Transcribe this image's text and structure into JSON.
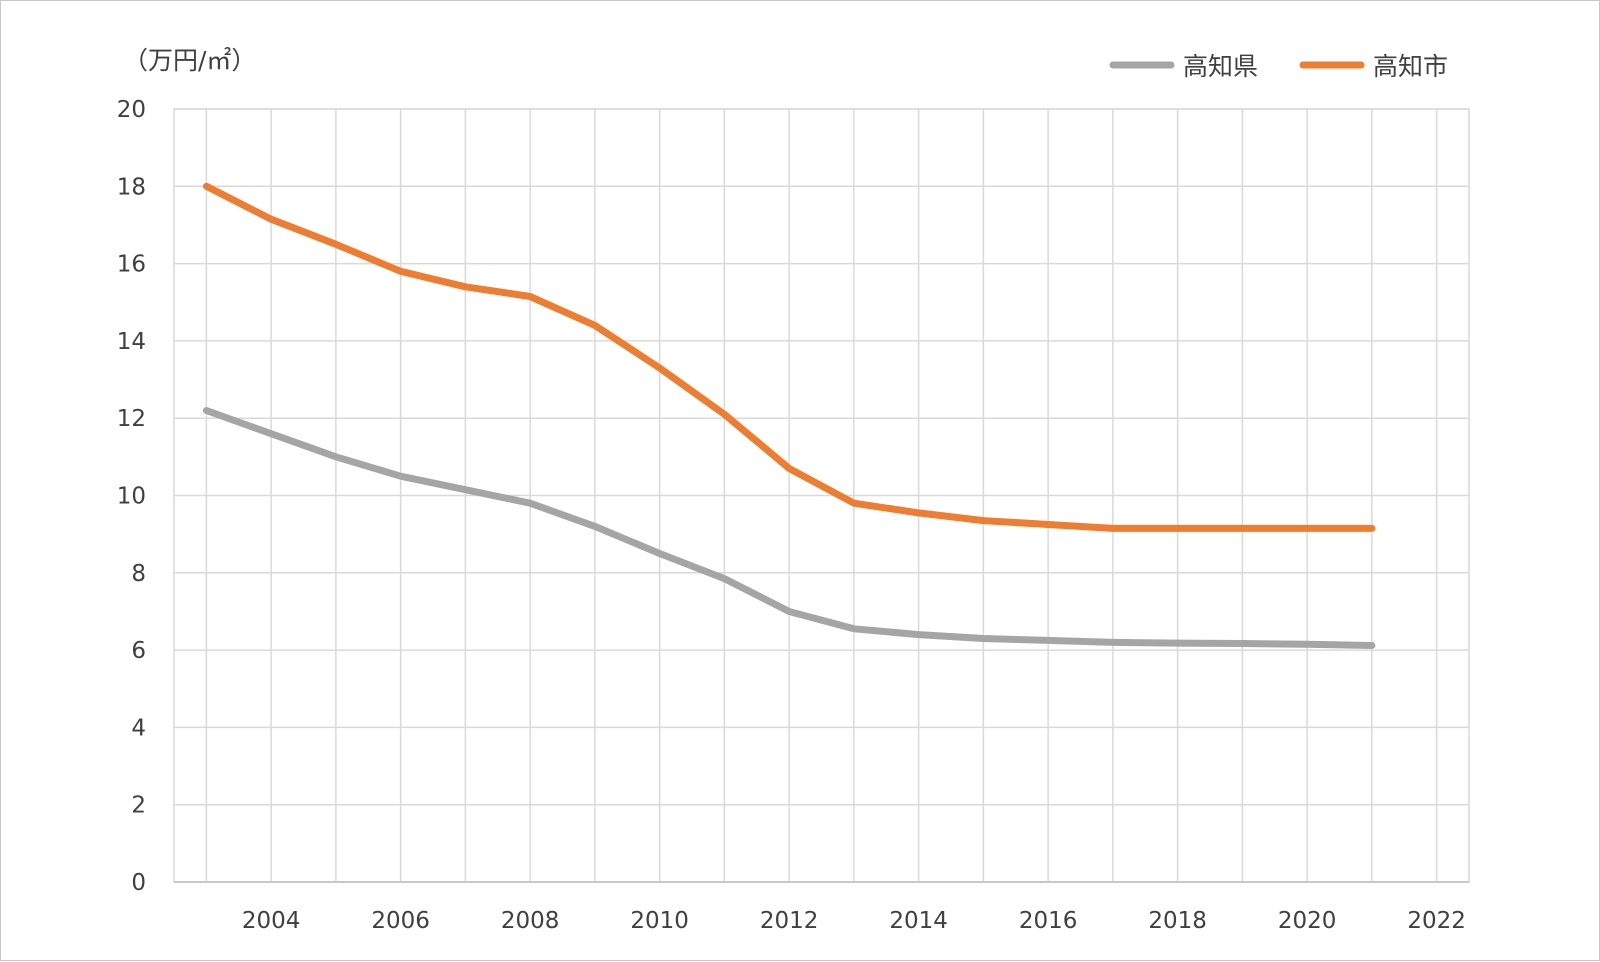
{
  "chart_data": {
    "type": "line",
    "ylabel": "（万円/㎡）",
    "xlim": [
      2002.5,
      2022.5
    ],
    "ylim": [
      0,
      20
    ],
    "y_ticks": [
      0,
      2,
      4,
      6,
      8,
      10,
      12,
      14,
      16,
      18,
      20
    ],
    "x_ticks": [
      2004,
      2006,
      2008,
      2010,
      2012,
      2014,
      2016,
      2018,
      2020,
      2022
    ],
    "grid": true,
    "legend_position": "top-right",
    "x": [
      2003,
      2004,
      2005,
      2006,
      2007,
      2008,
      2009,
      2010,
      2011,
      2012,
      2013,
      2014,
      2015,
      2016,
      2017,
      2018,
      2019,
      2020,
      2021
    ],
    "series": [
      {
        "name": "高知県",
        "color": "#a5a5a5",
        "values": [
          12.2,
          11.6,
          11.0,
          10.5,
          10.15,
          9.8,
          9.2,
          8.5,
          7.85,
          7.0,
          6.55,
          6.4,
          6.3,
          6.25,
          6.2,
          6.18,
          6.17,
          6.15,
          6.12
        ]
      },
      {
        "name": "高知市",
        "color": "#ed7d31",
        "values": [
          18.0,
          17.15,
          16.5,
          15.8,
          15.4,
          15.15,
          14.4,
          13.3,
          12.1,
          10.7,
          9.8,
          9.55,
          9.35,
          9.25,
          9.15,
          9.15,
          9.15,
          9.15,
          9.15
        ]
      }
    ]
  }
}
